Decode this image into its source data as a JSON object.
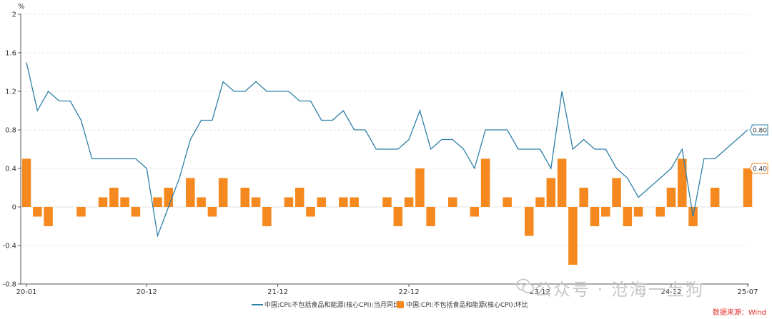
{
  "chart_data": {
    "type": "bar+line",
    "unit_label": "%",
    "ylim": [
      -0.8,
      2
    ],
    "yticks": [
      "2",
      "1.6",
      "1.2",
      "0.8",
      "0.4",
      "0",
      "-0.4",
      "-0.8"
    ],
    "categories": [
      "20-01",
      "20-02",
      "20-03",
      "20-04",
      "20-05",
      "20-06",
      "20-07",
      "20-08",
      "20-09",
      "20-10",
      "20-11",
      "20-12",
      "21-01",
      "21-02",
      "21-03",
      "21-04",
      "21-05",
      "21-06",
      "21-07",
      "21-08",
      "21-09",
      "21-10",
      "21-11",
      "21-12",
      "22-01",
      "22-02",
      "22-03",
      "22-04",
      "22-05",
      "22-06",
      "22-07",
      "22-08",
      "22-09",
      "22-10",
      "22-11",
      "22-12",
      "23-01",
      "23-02",
      "23-03",
      "23-04",
      "23-05",
      "23-06",
      "23-07",
      "23-08",
      "23-09",
      "23-10",
      "23-11",
      "23-12",
      "24-01",
      "24-02",
      "24-03",
      "24-04",
      "24-05",
      "24-06",
      "24-07",
      "24-08",
      "24-09",
      "24-10",
      "24-11",
      "24-12",
      "25-01",
      "25-02",
      "25-03",
      "25-04",
      "25-05",
      "25-06",
      "25-07"
    ],
    "xtick_labels": [
      "20-01",
      "20-12",
      "21-12",
      "22-12",
      "23-12",
      "24-12",
      "25-07"
    ],
    "series": [
      {
        "name": "中国:CPI:不包括食品和能源(核心CPI):当月同比",
        "type": "line",
        "color": "#2e7fa8",
        "values": [
          1.5,
          1.0,
          1.2,
          1.1,
          1.1,
          0.9,
          0.5,
          0.5,
          0.5,
          0.5,
          0.5,
          0.4,
          -0.3,
          0.0,
          0.3,
          0.7,
          0.9,
          0.9,
          1.3,
          1.2,
          1.2,
          1.3,
          1.2,
          1.2,
          1.2,
          1.1,
          1.1,
          0.9,
          0.9,
          1.0,
          0.8,
          0.8,
          0.6,
          0.6,
          0.6,
          0.7,
          1.0,
          0.6,
          0.7,
          0.7,
          0.6,
          0.4,
          0.8,
          0.8,
          0.8,
          0.6,
          0.6,
          0.6,
          0.4,
          1.2,
          0.6,
          0.7,
          0.6,
          0.6,
          0.4,
          0.3,
          0.1,
          0.2,
          0.3,
          0.4,
          0.6,
          -0.1,
          0.5,
          0.5,
          0.6,
          0.7,
          0.8
        ],
        "last_label": "0.80"
      },
      {
        "name": "中国:CPI:不包括食品和能源(核心CPI):环比",
        "type": "bar",
        "color": "#f5891f",
        "values": [
          0.5,
          -0.1,
          -0.2,
          0.0,
          0.0,
          -0.1,
          0.0,
          0.1,
          0.2,
          0.1,
          -0.1,
          0.0,
          0.1,
          0.2,
          0.0,
          0.3,
          0.1,
          -0.1,
          0.3,
          0.0,
          0.2,
          0.1,
          -0.2,
          0.0,
          0.1,
          0.2,
          -0.1,
          0.1,
          0.0,
          0.1,
          0.1,
          0.0,
          0.0,
          0.1,
          -0.2,
          0.1,
          0.4,
          -0.2,
          0.0,
          0.1,
          0.0,
          -0.1,
          0.5,
          0.0,
          0.1,
          0.0,
          -0.3,
          0.1,
          0.3,
          0.5,
          -0.6,
          0.2,
          -0.2,
          -0.1,
          0.3,
          -0.2,
          -0.1,
          0.0,
          -0.1,
          0.2,
          0.5,
          -0.2,
          0.0,
          0.2,
          0.0,
          0.0,
          0.4
        ],
        "last_label": "0.40"
      }
    ],
    "legend_placement": "bottom-center",
    "grid": "horizontal-dashed"
  },
  "source": "数据来源：Wind",
  "watermark": "公众号 · 沧海一土狗",
  "watermark_icon": "wechat-icon"
}
